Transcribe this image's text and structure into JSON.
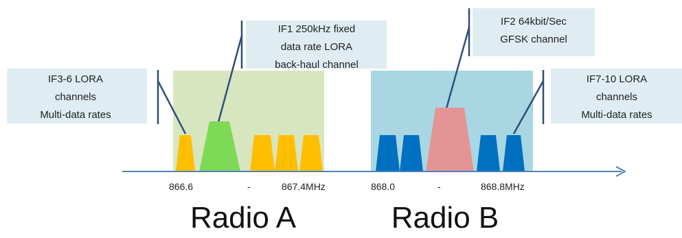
{
  "colors": {
    "radio_a_band": "#d8e6c0",
    "radio_b_band": "#a8d6e2",
    "callout_bg": "#dcebf2",
    "axis": "#4f81bd",
    "leader": "#2f4f7a",
    "lora_a": "#ffbf00",
    "backhaul": "#7ed957",
    "lora_b": "#0070c0",
    "gfsk": "#e49494"
  },
  "callouts": {
    "if3_6": [
      "IF3-6 LORA",
      "channels",
      "Multi-data rates"
    ],
    "if1": [
      "IF1 250kHz fixed",
      "data rate LORA",
      "back-haul channel"
    ],
    "if2": [
      "IF2 64kbit/Sec",
      "GFSK channel"
    ],
    "if7_10": [
      "IF7-10 LORA",
      "channels",
      "Multi-data rates"
    ]
  },
  "frequencies": {
    "radio_a_start": "866.6",
    "radio_a_dash": "-",
    "radio_a_end": "867.4MHz",
    "radio_b_start": "868.0",
    "radio_b_dash": "-",
    "radio_b_end": "868.8MHz"
  },
  "radios": {
    "a": "Radio A",
    "b": "Radio B"
  },
  "channels": {
    "radio_a": [
      {
        "type": "lora",
        "name": "IF3"
      },
      {
        "type": "backhaul",
        "name": "IF1"
      },
      {
        "type": "lora",
        "name": "IF4"
      },
      {
        "type": "lora",
        "name": "IF5"
      },
      {
        "type": "lora",
        "name": "IF6"
      }
    ],
    "radio_b": [
      {
        "type": "lora",
        "name": "IF7"
      },
      {
        "type": "lora",
        "name": "IF8"
      },
      {
        "type": "gfsk",
        "name": "IF2"
      },
      {
        "type": "lora",
        "name": "IF9"
      },
      {
        "type": "lora",
        "name": "IF10"
      }
    ]
  }
}
